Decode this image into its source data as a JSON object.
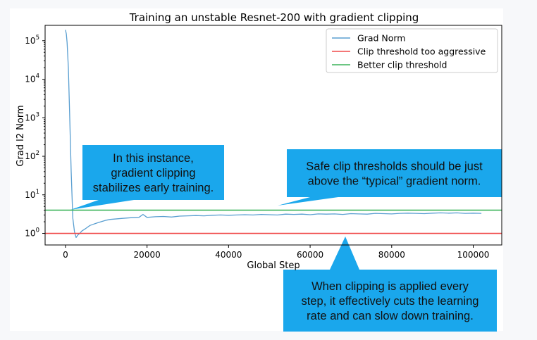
{
  "chart_data": {
    "type": "line",
    "title": "Training an unstable Resnet-200 with gradient clipping",
    "xlabel": "Global Step",
    "ylabel": "Grad l2 Norm",
    "xlim": [
      -5000,
      107000
    ],
    "ylim": [
      0.5,
      250000
    ],
    "yscale": "log",
    "x_ticks": [
      0,
      20000,
      40000,
      60000,
      80000,
      100000
    ],
    "x_tick_labels": [
      "0",
      "20000",
      "40000",
      "60000",
      "80000",
      "100000"
    ],
    "y_ticks": [
      1,
      10,
      100,
      1000,
      10000,
      100000
    ],
    "y_tick_labels": [
      {
        "base": "10",
        "exp": "0"
      },
      {
        "base": "10",
        "exp": "1"
      },
      {
        "base": "10",
        "exp": "2"
      },
      {
        "base": "10",
        "exp": "3"
      },
      {
        "base": "10",
        "exp": "4"
      },
      {
        "base": "10",
        "exp": "5"
      }
    ],
    "grid": false,
    "legend_position": "top-right",
    "series": [
      {
        "name": "Grad Norm",
        "color": "#5a9fd1",
        "x": [
          0,
          200,
          400,
          700,
          1000,
          1400,
          1800,
          2200,
          2600,
          3000,
          3500,
          4000,
          5000,
          6000,
          7000,
          8000,
          9000,
          10000,
          11000,
          12000,
          14000,
          16000,
          18000,
          19000,
          20000,
          22000,
          24000,
          26000,
          28000,
          30000,
          32000,
          34000,
          36000,
          38000,
          40000,
          42000,
          44000,
          46000,
          48000,
          50000,
          52000,
          54000,
          56000,
          58000,
          60000,
          62000,
          64000,
          66000,
          68000,
          70000,
          72000,
          74000,
          76000,
          78000,
          80000,
          82000,
          84000,
          86000,
          88000,
          90000,
          92000,
          94000,
          96000,
          98000,
          100000,
          102000
        ],
        "y": [
          190000,
          150000,
          90000,
          20000,
          1500,
          40,
          2.5,
          1.1,
          0.78,
          0.9,
          1.0,
          1.15,
          1.35,
          1.6,
          1.75,
          1.9,
          2.05,
          2.2,
          2.3,
          2.35,
          2.45,
          2.55,
          2.6,
          3.1,
          2.6,
          2.7,
          2.75,
          2.65,
          2.8,
          2.85,
          2.9,
          2.85,
          2.95,
          3.0,
          2.95,
          3.0,
          3.05,
          3.0,
          3.1,
          3.05,
          3.0,
          3.15,
          3.1,
          3.15,
          3.05,
          3.2,
          3.15,
          3.2,
          3.1,
          3.25,
          3.2,
          3.15,
          3.3,
          3.25,
          3.2,
          3.3,
          3.35,
          3.3,
          3.25,
          3.35,
          3.4,
          3.35,
          3.4,
          3.3,
          3.35,
          3.3
        ]
      },
      {
        "name": "Clip threshold too aggressive",
        "color": "#f04a4a",
        "hline": 1.0
      },
      {
        "name": "Better clip threshold",
        "color": "#3cb45a",
        "hline": 4.0
      }
    ],
    "annotations": [
      {
        "lines": [
          "In this instance,",
          "gradient clipping",
          "stabilizes early training."
        ],
        "color": "#1aa7ec"
      },
      {
        "lines": [
          "Safe clip thresholds should be just",
          "above the “typical” gradient norm."
        ],
        "color": "#1aa7ec"
      },
      {
        "lines": [
          "When clipping is applied every",
          "step, it effectively cuts the learning",
          "rate and can slow down training."
        ],
        "color": "#1aa7ec"
      }
    ]
  }
}
